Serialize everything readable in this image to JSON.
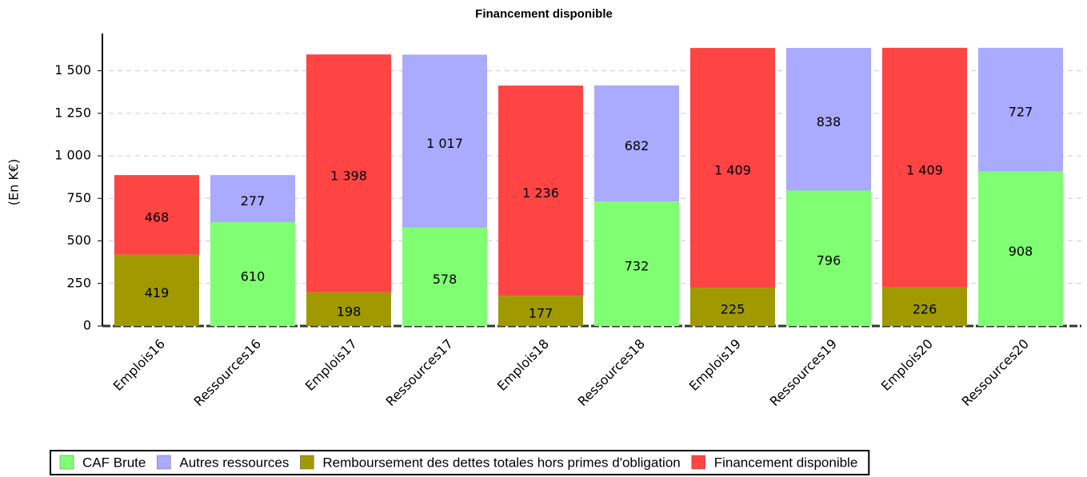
{
  "chart_data": {
    "type": "stacked_bar",
    "title": "Financement disponible",
    "y_label": "(En K€)",
    "categories": [
      "Emplois16",
      "Ressources16",
      "Emplois17",
      "Ressources17",
      "Emplois18",
      "Ressources18",
      "Emplois19",
      "Ressources19",
      "Emplois20",
      "Ressources20"
    ],
    "series": [
      {
        "name": "CAF Brute",
        "color": "#80ff72",
        "values": [
          null,
          610,
          null,
          578,
          null,
          732,
          null,
          796,
          null,
          908
        ],
        "value_labels": [
          null,
          "610",
          null,
          "578",
          null,
          "732",
          null,
          "796",
          null,
          "908"
        ]
      },
      {
        "name": "Autres ressources",
        "color": "#aaaaff",
        "values": [
          null,
          277,
          null,
          1017,
          null,
          682,
          null,
          838,
          null,
          727
        ],
        "value_labels": [
          null,
          "277",
          null,
          "1 017",
          null,
          "682",
          null,
          "838",
          null,
          "727"
        ]
      },
      {
        "name": "Remboursement des dettes totales hors primes d'obligation",
        "color": "#a09900",
        "values": [
          419,
          null,
          198,
          null,
          177,
          null,
          225,
          null,
          226,
          null
        ],
        "value_labels": [
          "419",
          null,
          "198",
          null,
          "177",
          null,
          "225",
          null,
          "226",
          null
        ]
      },
      {
        "name": "Financement disponible",
        "color": "#ff4444",
        "values": [
          468,
          null,
          1398,
          null,
          1236,
          null,
          1409,
          null,
          1409,
          null
        ],
        "value_labels": [
          "468",
          null,
          "1 398",
          null,
          "1 236",
          null,
          "1 409",
          null,
          "1 409",
          null
        ]
      }
    ],
    "ylim": [
      0,
      1700
    ],
    "yticks": [
      0,
      250,
      500,
      750,
      {
        "value": 1000,
        "label": "1 000"
      },
      {
        "value": 1250,
        "label": "1 250"
      },
      {
        "value": 1500,
        "label": "1 500"
      }
    ],
    "grid": true,
    "legend": "bottom"
  }
}
